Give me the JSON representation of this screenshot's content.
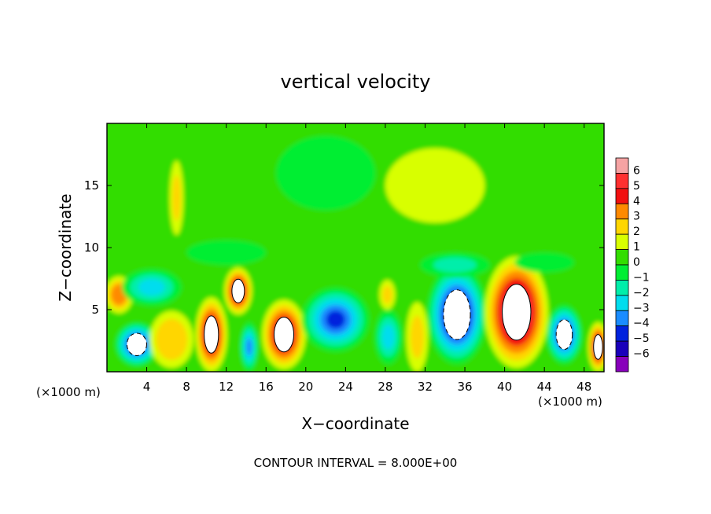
{
  "chart_data": {
    "type": "heatmap",
    "title": "vertical velocity",
    "xlabel": "X−coordinate",
    "ylabel": "Z−coordinate",
    "x_unit_left": "(×1000 m)",
    "x_unit_right": "(×1000 m)",
    "footer": "CONTOUR INTERVAL = 8.000E+00",
    "xlim": [
      0,
      50
    ],
    "ylim": [
      0,
      20
    ],
    "x_ticks": [
      4,
      8,
      12,
      16,
      20,
      24,
      28,
      32,
      36,
      40,
      44,
      48
    ],
    "y_ticks": [
      5,
      10,
      15
    ],
    "colorbar": {
      "levels": [
        "6",
        "5",
        "4",
        "3",
        "2",
        "1",
        "0",
        "−1",
        "−2",
        "−3",
        "−4",
        "−5",
        "−6"
      ],
      "colors": [
        "#f5a3a3",
        "#ff3030",
        "#f21010",
        "#ff8a00",
        "#ffd600",
        "#d8ff00",
        "#33dd00",
        "#00ee33",
        "#00eeaa",
        "#00ddee",
        "#1a8cff",
        "#0022dd",
        "#1a00bb",
        "#8800bb"
      ]
    },
    "features": [
      {
        "x": 3.0,
        "z": 2.2,
        "value": -6,
        "rx": 2.2,
        "rz": 1.8
      },
      {
        "x": 1.2,
        "z": 6.2,
        "value": 3.5,
        "rx": 1.4,
        "rz": 1.5
      },
      {
        "x": 4.5,
        "z": 6.8,
        "value": -2.5,
        "rx": 3.0,
        "rz": 1.5
      },
      {
        "x": 6.5,
        "z": 2.6,
        "value": 2.5,
        "rx": 2.2,
        "rz": 2.3
      },
      {
        "x": 10.5,
        "z": 3.0,
        "value": 6,
        "rx": 1.6,
        "rz": 3.0
      },
      {
        "x": 13.2,
        "z": 6.5,
        "value": 6,
        "rx": 1.4,
        "rz": 1.9
      },
      {
        "x": 14.3,
        "z": 2.0,
        "value": -3.5,
        "rx": 0.9,
        "rz": 2.0
      },
      {
        "x": 17.8,
        "z": 3.0,
        "value": 5.5,
        "rx": 2.2,
        "rz": 2.8
      },
      {
        "x": 23.0,
        "z": 4.2,
        "value": -5,
        "rx": 3.4,
        "rz": 2.6
      },
      {
        "x": 28.3,
        "z": 2.8,
        "value": -3,
        "rx": 1.4,
        "rz": 2.2
      },
      {
        "x": 28.2,
        "z": 6.2,
        "value": 2,
        "rx": 0.8,
        "rz": 1.2
      },
      {
        "x": 31.2,
        "z": 2.8,
        "value": 2,
        "rx": 1.1,
        "rz": 2.8
      },
      {
        "x": 35.2,
        "z": 4.6,
        "value": -7,
        "rx": 3.0,
        "rz": 4.0
      },
      {
        "x": 41.2,
        "z": 4.8,
        "value": 7,
        "rx": 3.2,
        "rz": 4.5
      },
      {
        "x": 46.0,
        "z": 3.0,
        "value": -5.5,
        "rx": 1.8,
        "rz": 2.4
      },
      {
        "x": 49.4,
        "z": 2.0,
        "value": 6,
        "rx": 1.0,
        "rz": 2.0
      },
      {
        "x": 12.0,
        "z": 9.6,
        "value": -1,
        "rx": 4.0,
        "rz": 1.0
      },
      {
        "x": 35.0,
        "z": 8.6,
        "value": -1.5,
        "rx": 3.5,
        "rz": 1.0
      },
      {
        "x": 44.0,
        "z": 8.8,
        "value": -1,
        "rx": 3.0,
        "rz": 0.8
      },
      {
        "x": 22.0,
        "z": 16.0,
        "value": -0.8,
        "rx": 5.0,
        "rz": 3.0
      },
      {
        "x": 33.0,
        "z": 15.0,
        "value": 0.8,
        "rx": 5.0,
        "rz": 3.0
      },
      {
        "x": 7.0,
        "z": 14.0,
        "value": 2,
        "rx": 0.7,
        "rz": 3.0
      }
    ]
  }
}
